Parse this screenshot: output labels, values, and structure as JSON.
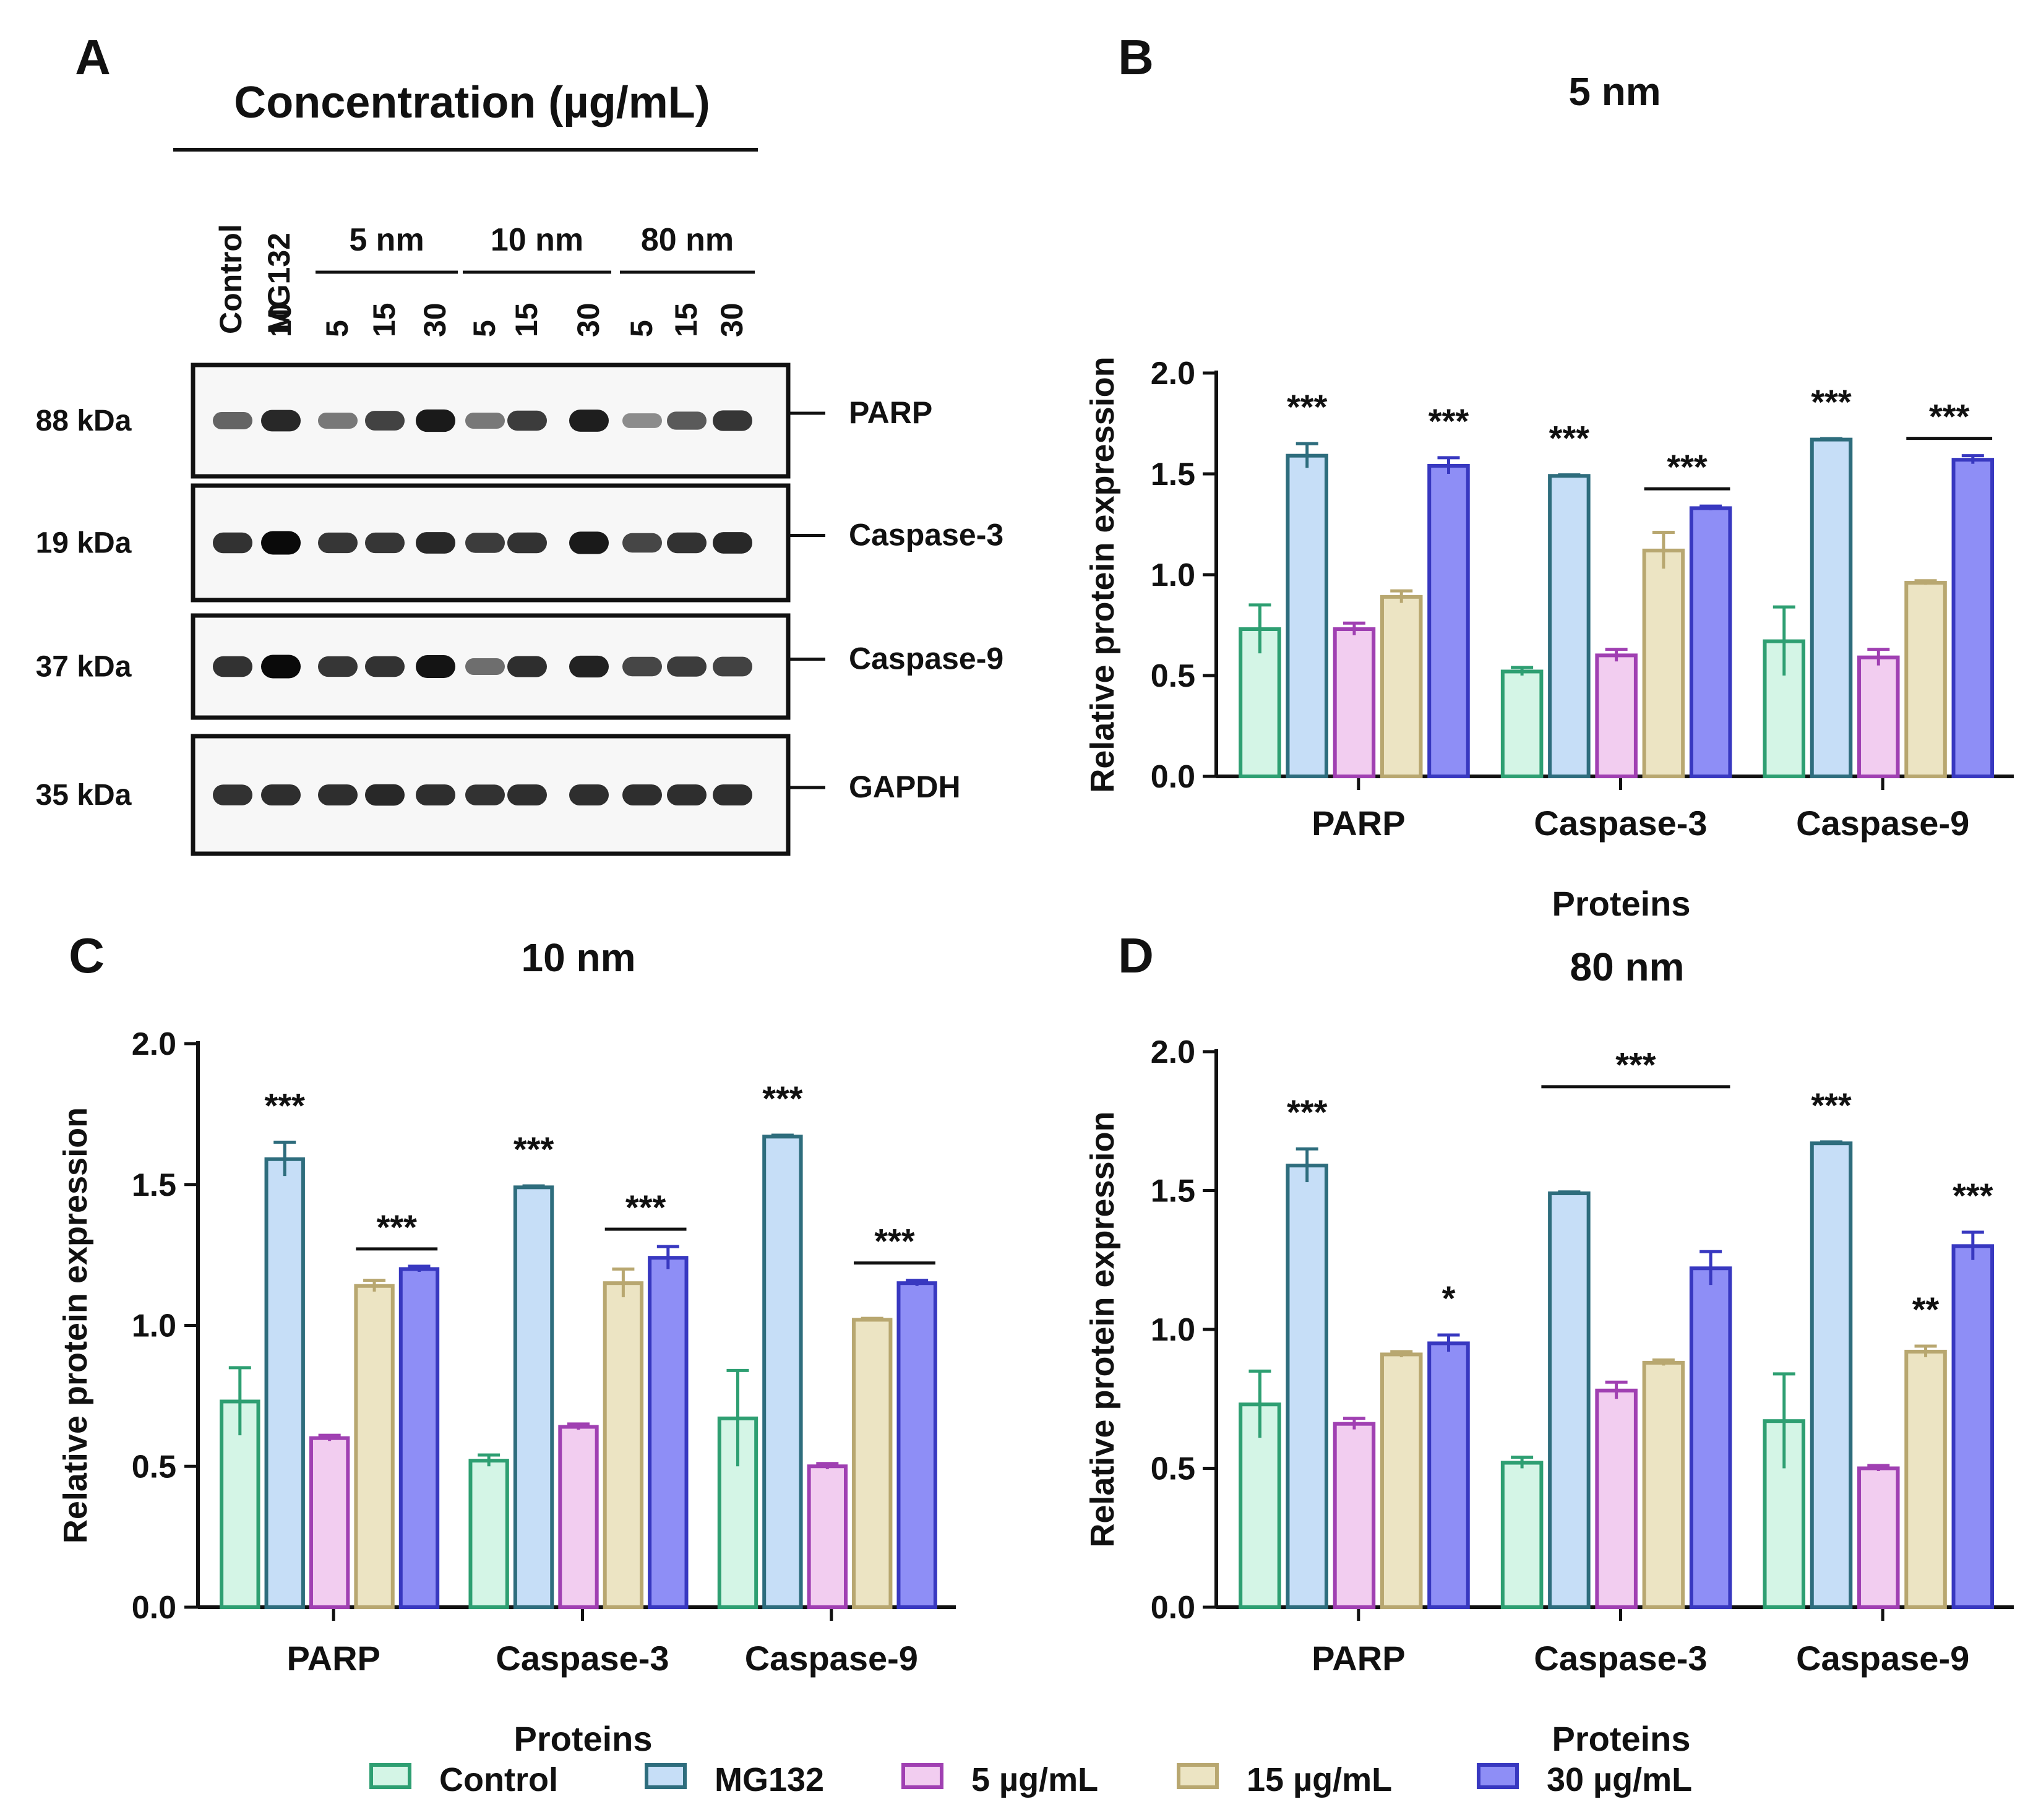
{
  "panel_letters": [
    "A",
    "B",
    "C",
    "D"
  ],
  "western_blot": {
    "header": "Concentration (µg/mL)",
    "lanes": [
      {
        "label": "Control",
        "group": ""
      },
      {
        "label": "10",
        "group": "MG132"
      },
      {
        "label": "5",
        "group": "5 nm"
      },
      {
        "label": "15",
        "group": "5 nm"
      },
      {
        "label": "30",
        "group": "5 nm"
      },
      {
        "label": "5",
        "group": "10 nm"
      },
      {
        "label": "15",
        "group": "10 nm"
      },
      {
        "label": "30",
        "group": "10 nm"
      },
      {
        "label": "5",
        "group": "80 nm"
      },
      {
        "label": "15",
        "group": "80 nm"
      },
      {
        "label": "30",
        "group": "80 nm"
      }
    ],
    "top_labels": [
      "Control",
      "MG132"
    ],
    "groups": [
      "5 nm",
      "10 nm",
      "80 nm"
    ],
    "blots": [
      {
        "protein": "PARP",
        "mw": "88 kDa",
        "intensity": [
          0.55,
          0.85,
          0.45,
          0.72,
          0.92,
          0.45,
          0.75,
          0.9,
          0.35,
          0.6,
          0.78
        ]
      },
      {
        "protein": "Caspase-3",
        "mw": "19 kDa",
        "intensity": [
          0.8,
          1.0,
          0.78,
          0.78,
          0.85,
          0.75,
          0.8,
          0.92,
          0.7,
          0.8,
          0.85
        ]
      },
      {
        "protein": "Caspase-9",
        "mw": "37 kDa",
        "intensity": [
          0.8,
          1.0,
          0.78,
          0.8,
          0.95,
          0.5,
          0.82,
          0.88,
          0.7,
          0.75,
          0.72
        ]
      },
      {
        "protein": "GAPDH",
        "mw": "35 kDa",
        "intensity": [
          0.8,
          0.82,
          0.82,
          0.85,
          0.82,
          0.8,
          0.82,
          0.82,
          0.82,
          0.82,
          0.82
        ]
      }
    ]
  },
  "legend": [
    "Control",
    "MG132",
    "5 µg/mL",
    "15 µg/mL",
    "30 µg/mL"
  ],
  "colors": {
    "fills": [
      "#d4f5e6",
      "#c6def7",
      "#f2cdf0",
      "#ece4c3",
      "#8e8ef6"
    ],
    "strokes": [
      "#2e9f72",
      "#2e6d7d",
      "#a040b2",
      "#b8a770",
      "#3838c0"
    ]
  },
  "chart_data": [
    {
      "type": "bar",
      "panel": "B",
      "title": "5 nm",
      "xlabel": "Proteins",
      "ylabel": "Relative protein expression",
      "ylim": [
        0,
        2.0
      ],
      "yticks": [
        "0.0",
        "0.5",
        "1.0",
        "1.5",
        "2.0"
      ],
      "categories": [
        "PARP",
        "Caspase-3",
        "Caspase-9"
      ],
      "series": [
        {
          "name": "Control",
          "values": [
            0.73,
            0.52,
            0.67
          ],
          "errors": [
            0.12,
            0.02,
            0.17
          ]
        },
        {
          "name": "MG132",
          "values": [
            1.59,
            1.49,
            1.67
          ],
          "errors": [
            0.06,
            0.005,
            0.005
          ]
        },
        {
          "name": "5 µg/mL",
          "values": [
            0.73,
            0.6,
            0.59
          ],
          "errors": [
            0.03,
            0.03,
            0.04
          ]
        },
        {
          "name": "15 µg/mL",
          "values": [
            0.89,
            1.12,
            0.96
          ],
          "errors": [
            0.03,
            0.09,
            0.01
          ]
        },
        {
          "name": "30 µg/mL",
          "values": [
            1.54,
            1.33,
            1.57
          ],
          "errors": [
            0.04,
            0.01,
            0.02
          ]
        }
      ],
      "annotations": [
        {
          "text": "***",
          "category": 0,
          "series": 1
        },
        {
          "text": "***",
          "category": 0,
          "series": 4
        },
        {
          "text": "***",
          "category": 1,
          "series": 1
        },
        {
          "text": "***",
          "category": 1,
          "span": [
            3,
            4
          ]
        },
        {
          "text": "***",
          "category": 2,
          "series": 1
        },
        {
          "text": "***",
          "category": 2,
          "span": [
            3,
            4
          ]
        }
      ]
    },
    {
      "type": "bar",
      "panel": "C",
      "title": "10 nm",
      "xlabel": "Proteins",
      "ylabel": "Relative protein expression",
      "ylim": [
        0,
        2.0
      ],
      "yticks": [
        "0.0",
        "0.5",
        "1.0",
        "1.5",
        "2.0"
      ],
      "categories": [
        "PARP",
        "Caspase-3",
        "Caspase-9"
      ],
      "series": [
        {
          "name": "Control",
          "values": [
            0.73,
            0.52,
            0.67
          ],
          "errors": [
            0.12,
            0.02,
            0.17
          ]
        },
        {
          "name": "MG132",
          "values": [
            1.59,
            1.49,
            1.67
          ],
          "errors": [
            0.06,
            0.005,
            0.005
          ]
        },
        {
          "name": "5 µg/mL",
          "values": [
            0.6,
            0.64,
            0.5
          ],
          "errors": [
            0.01,
            0.01,
            0.01
          ]
        },
        {
          "name": "15 µg/mL",
          "values": [
            1.14,
            1.15,
            1.02
          ],
          "errors": [
            0.02,
            0.05,
            0.005
          ]
        },
        {
          "name": "30 µg/mL",
          "values": [
            1.2,
            1.24,
            1.15
          ],
          "errors": [
            0.01,
            0.04,
            0.01
          ]
        }
      ],
      "annotations": [
        {
          "text": "***",
          "category": 0,
          "series": 1
        },
        {
          "text": "***",
          "category": 0,
          "span": [
            3,
            4
          ]
        },
        {
          "text": "***",
          "category": 1,
          "series": 1
        },
        {
          "text": "***",
          "category": 1,
          "span": [
            3,
            4
          ]
        },
        {
          "text": "***",
          "category": 2,
          "series": 1
        },
        {
          "text": "***",
          "category": 2,
          "span": [
            3,
            4
          ]
        }
      ]
    },
    {
      "type": "bar",
      "panel": "D",
      "title": "80 nm",
      "xlabel": "Proteins",
      "ylabel": "Relative protein expression",
      "ylim": [
        0,
        2.0
      ],
      "yticks": [
        "0.0",
        "0.5",
        "1.0",
        "1.5",
        "2.0"
      ],
      "categories": [
        "PARP",
        "Caspase-3",
        "Caspase-9"
      ],
      "series": [
        {
          "name": "Control",
          "values": [
            0.73,
            0.52,
            0.67
          ],
          "errors": [
            0.12,
            0.02,
            0.17
          ]
        },
        {
          "name": "MG132",
          "values": [
            1.59,
            1.49,
            1.67
          ],
          "errors": [
            0.06,
            0.005,
            0.005
          ]
        },
        {
          "name": "5 µg/mL",
          "values": [
            0.66,
            0.78,
            0.5
          ],
          "errors": [
            0.02,
            0.03,
            0.01
          ]
        },
        {
          "name": "15 µg/mL",
          "values": [
            0.91,
            0.88,
            0.92
          ],
          "errors": [
            0.01,
            0.01,
            0.02
          ]
        },
        {
          "name": "30 µg/mL",
          "values": [
            0.95,
            1.22,
            1.3
          ],
          "errors": [
            0.03,
            0.06,
            0.05
          ]
        }
      ],
      "annotations": [
        {
          "text": "***",
          "category": 0,
          "series": 1
        },
        {
          "text": "*",
          "category": 0,
          "series": 4
        },
        {
          "text": "***",
          "category": 1,
          "spanFull": true
        },
        {
          "text": "***",
          "category": 2,
          "series": 1
        },
        {
          "text": "**",
          "category": 2,
          "series": 3
        },
        {
          "text": "***",
          "category": 2,
          "series": 4
        }
      ]
    }
  ]
}
